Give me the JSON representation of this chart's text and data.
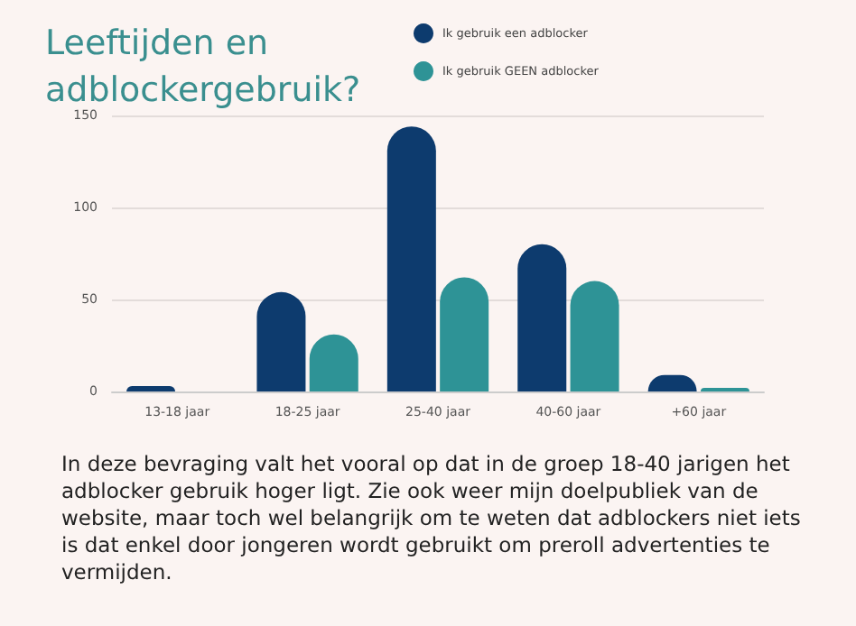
{
  "chart_data": {
    "type": "bar",
    "title": "Leeftijden en adblockergebruik?",
    "categories": [
      "13-18 jaar",
      "18-25 jaar",
      "25-40 jaar",
      "40-60 jaar",
      "+60 jaar"
    ],
    "series": [
      {
        "name": "Ik gebruik een adblocker",
        "color": "#0d3b6e",
        "values": [
          3,
          54,
          144,
          80,
          9
        ]
      },
      {
        "name": "Ik gebruik GEEN adblocker",
        "color": "#2e9396",
        "values": [
          0,
          31,
          62,
          60,
          2
        ]
      }
    ],
    "ylim": [
      0,
      150
    ],
    "yticks": [
      0,
      50,
      100,
      150
    ],
    "grid": "y",
    "legend": "top right",
    "annotations": [
      "In deze bevraging valt het vooral op dat in de groep 18-40 jarigen het adblocker gebruik hoger ligt. Zie ook weer mijn doelpubliek van de website, maar toch wel belangrijk om te weten dat adblockers niet iets is dat enkel door jongeren wordt gebruikt om preroll advertenties te vermijden."
    ]
  }
}
